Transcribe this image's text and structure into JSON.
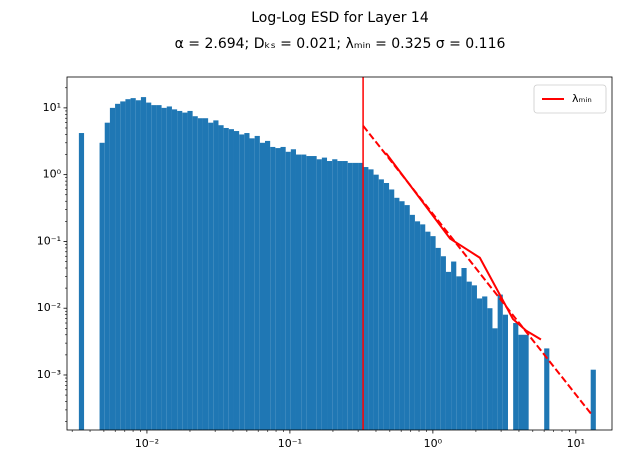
{
  "chart_data": {
    "type": "histogram",
    "title": "Log-Log ESD for Layer 14",
    "subtitle": "α = 2.694; Dₖₛ = 0.021; λₘᵢₙ = 0.325 σ = 0.116",
    "xscale": "log",
    "yscale": "log",
    "xlim": [
      0.00276,
      17.9
    ],
    "ylim": [
      0.00015,
      29
    ],
    "xticks": [
      {
        "value": 0.01,
        "label": "10⁻²"
      },
      {
        "value": 0.1,
        "label": "10⁻¹"
      },
      {
        "value": 1,
        "label": "10⁰"
      },
      {
        "value": 10,
        "label": "10¹"
      }
    ],
    "yticks": [
      {
        "value": 0.001,
        "label": "10⁻³"
      },
      {
        "value": 0.01,
        "label": "10⁻²"
      },
      {
        "value": 0.1,
        "label": "10⁻¹"
      },
      {
        "value": 1,
        "label": "10⁰"
      },
      {
        "value": 10,
        "label": "10¹"
      }
    ],
    "color": "#1f77b4",
    "bins": [
      0.003342,
      0.003633,
      0.003948,
      0.004291,
      0.004663,
      0.005068,
      0.005508,
      0.005986,
      0.006506,
      0.007071,
      0.007685,
      0.008352,
      0.009077,
      0.009865,
      0.01072,
      0.01165,
      0.01266,
      0.01376,
      0.01496,
      0.01626,
      0.01767,
      0.0192,
      0.02087,
      0.02268,
      0.02465,
      0.02679,
      0.02912,
      0.03165,
      0.03439,
      0.03738,
      0.04063,
      0.04416,
      0.04799,
      0.05216,
      0.05668,
      0.06161,
      0.06696,
      0.07277,
      0.07909,
      0.08596,
      0.09342,
      0.1015,
      0.1103,
      0.1199,
      0.1303,
      0.1416,
      0.1539,
      0.1673,
      0.1818,
      0.1976,
      0.2148,
      0.2334,
      0.2537,
      0.2757,
      0.2997,
      0.3257,
      0.354,
      0.3847,
      0.4181,
      0.4544,
      0.4939,
      0.5368,
      0.5834,
      0.634,
      0.6891,
      0.7489,
      0.814,
      0.8846,
      0.9614,
      1.045,
      1.136,
      1.234,
      1.341,
      1.458,
      1.584,
      1.722,
      1.872,
      2.034,
      2.211,
      2.403,
      2.611,
      2.838,
      3.085,
      3.353,
      3.644,
      3.96,
      4.304,
      4.677,
      5.084,
      5.525,
      6.005,
      6.526,
      7.092,
      7.708,
      8.375,
      9.103,
      9.894,
      10.75,
      11.69,
      12.7,
      13.8
    ],
    "counts": [
      4.2,
      0,
      0,
      0,
      3.0,
      6,
      10,
      11.5,
      12.5,
      13.5,
      14,
      13,
      14.5,
      12,
      11,
      11,
      10,
      10.5,
      9.5,
      9,
      8.5,
      9,
      7.5,
      7,
      7,
      6,
      6.5,
      5.5,
      5,
      4.8,
      4.5,
      4,
      4.2,
      3.5,
      3.8,
      3.0,
      3.2,
      2.6,
      2.5,
      2.6,
      2.2,
      2.4,
      2.0,
      2.0,
      1.9,
      1.9,
      1.7,
      1.8,
      1.6,
      1.7,
      1.6,
      1.6,
      1.5,
      1.5,
      1.5,
      1.3,
      1.2,
      1.0,
      0.85,
      0.75,
      0.6,
      0.45,
      0.4,
      0.35,
      0.25,
      0.2,
      0.18,
      0.14,
      0.12,
      0.08,
      0.06,
      0.035,
      0.05,
      0.03,
      0.04,
      0.025,
      0.022,
      0.014,
      0.015,
      0.01,
      0.005,
      0.016,
      0.008,
      0,
      0.006,
      0.004,
      0.004,
      0,
      0,
      0,
      0.0025,
      0,
      0,
      0,
      0,
      0,
      0,
      0,
      0,
      0.0012
    ],
    "axvline": {
      "x": 0.325,
      "color": "#ff0000",
      "name": "λₘᵢₙ"
    },
    "lines": [
      {
        "style": "solid",
        "color": "#ff0000",
        "x": [
          0.47,
          1.32,
          2.13,
          3.63,
          4.5,
          5.7
        ],
        "y": [
          2.1,
          0.11,
          0.057,
          0.0069,
          0.0046,
          0.0034
        ]
      },
      {
        "style": "dashed",
        "color": "#ff0000",
        "x": [
          0.325,
          13
        ],
        "y": [
          5.4,
          0.00025
        ]
      }
    ],
    "legend": "upper right"
  }
}
